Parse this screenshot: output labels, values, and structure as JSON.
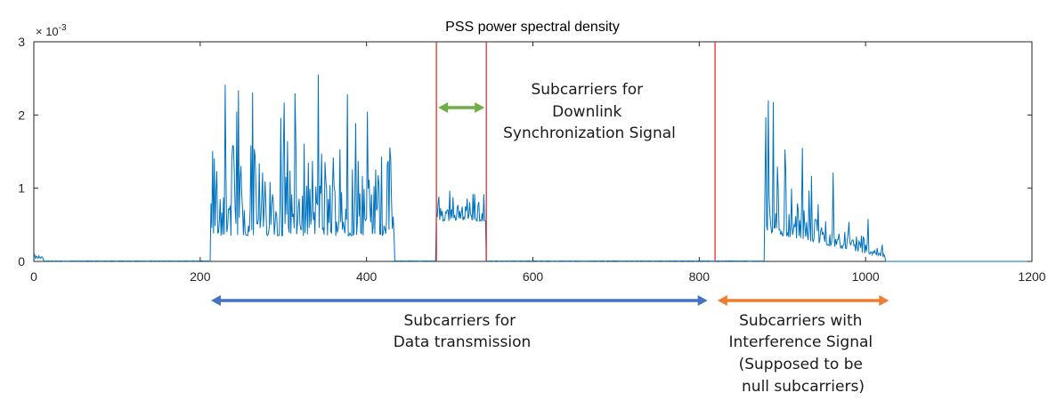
{
  "chart_data": {
    "type": "line",
    "title": "PSS power spectral density",
    "xlim": [
      0,
      1200
    ],
    "ylim": [
      0,
      3
    ],
    "y_multiplier_base": "× 10",
    "y_multiplier_exp": "-3",
    "x_ticks": [
      0,
      200,
      400,
      600,
      800,
      1000,
      1200
    ],
    "y_ticks": [
      0,
      1,
      2,
      3
    ],
    "grid": false,
    "series_color": "#0072BD",
    "segments": [
      {
        "x_start": 0,
        "x_end": 12,
        "base": 0.04,
        "spread": 0.03,
        "max": 0.09
      },
      {
        "x_start": 12,
        "x_end": 213,
        "base": 0.005,
        "spread": 0.004,
        "max": 0.015
      },
      {
        "x_start": 213,
        "x_end": 434,
        "base": 0.35,
        "spread": 0.8,
        "max": 2.55,
        "peak_x": 342,
        "peak_y": 2.55
      },
      {
        "x_start": 434,
        "x_end": 484,
        "base": 0.005,
        "spread": 0.004,
        "max": 0.015
      },
      {
        "x_start": 484,
        "x_end": 544,
        "base": 0.55,
        "spread": 0.25,
        "max": 1.05
      },
      {
        "x_start": 544,
        "x_end": 879,
        "base": 0.005,
        "spread": 0.004,
        "max": 0.015
      },
      {
        "x_start": 879,
        "x_end": 1024,
        "base": 0.35,
        "spread": 0.5,
        "max": 2.2,
        "peak_x": 883,
        "peak_y": 2.2
      },
      {
        "x_start": 1024,
        "x_end": 1200,
        "base": 0.0,
        "spread": 0.0,
        "max": 0.0
      }
    ],
    "vertical_lines": [
      {
        "x": 484,
        "color": "#e02020"
      },
      {
        "x": 544,
        "color": "#e02020"
      },
      {
        "x": 819,
        "color": "#e02020"
      }
    ]
  },
  "annotations": {
    "sync_label": [
      "Subcarriers for",
      "Downlink",
      "Synchronization Signal"
    ],
    "data_label": [
      "Subcarriers for",
      "Data transmission"
    ],
    "interference_label": [
      "Subcarriers with",
      "Interference Signal",
      "(Supposed to be",
      "null subcarriers)"
    ],
    "sync_arrow_color": "#70AD47",
    "data_arrow_color": "#4472C4",
    "interference_arrow_color": "#ED7D31"
  }
}
